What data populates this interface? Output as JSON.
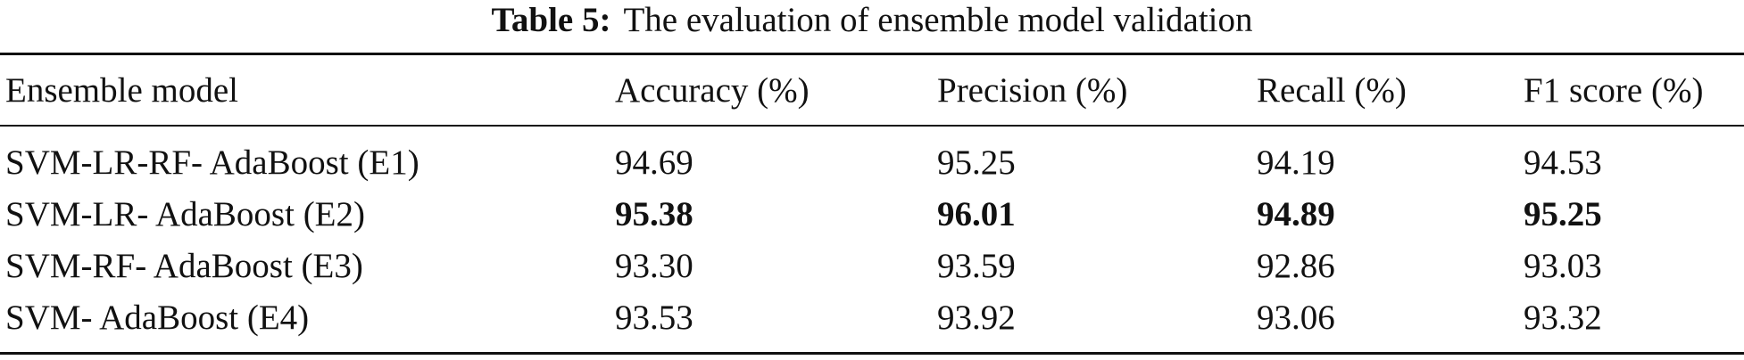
{
  "table": {
    "caption": {
      "label": "Table 5:",
      "text": "The evaluation of ensemble model validation"
    },
    "header": [
      "Ensemble model",
      "Accuracy (%)",
      "Precision (%)",
      "Recall (%)",
      "F1 score (%)"
    ],
    "rows": [
      [
        "SVM-LR-RF- AdaBoost (E1)",
        "94.69",
        "95.25",
        "94.19",
        "94.53"
      ],
      [
        "SVM-LR- AdaBoost (E2)",
        "95.38",
        "96.01",
        "94.89",
        "95.25"
      ],
      [
        "SVM-RF- AdaBoost (E3)",
        "93.30",
        "93.59",
        "92.86",
        "93.03"
      ],
      [
        "SVM- AdaBoost (E4)",
        "93.53",
        "93.92",
        "93.06",
        "93.32"
      ]
    ],
    "bold_row": 1
  }
}
